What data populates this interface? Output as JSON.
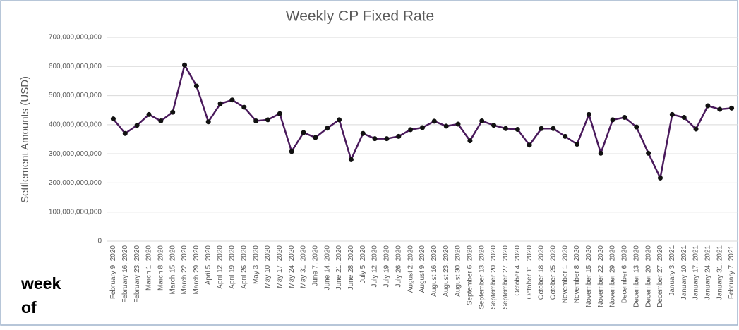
{
  "chart_data": {
    "type": "line",
    "title": "Weekly CP Fixed Rate",
    "y_label": "Settlement Amounts (USD)",
    "x_label": "week of",
    "categories": [
      "February 9, 2020",
      "February 16, 2020",
      "February 23, 2020",
      "March 1, 2020",
      "March 8, 2020",
      "March 15, 2020",
      "March 22, 2020",
      "March 29, 2020",
      "April 5, 2020",
      "April 12, 2020",
      "April 19, 2020",
      "April 26, 2020",
      "May 3, 2020",
      "May 10, 2020",
      "May 17, 2020",
      "May 24, 2020",
      "May 31, 2020",
      "June 7, 2020",
      "June 14, 2020",
      "June 21, 2020",
      "June 28, 2020",
      "July 5, 2020",
      "July 12, 2020",
      "July 19, 2020",
      "July 26, 2020",
      "August 2, 2020",
      "August 9, 2020",
      "August 16, 2020",
      "August 23, 2020",
      "August 30, 2020",
      "September 6, 2020",
      "September 13, 2020",
      "September 20, 2020",
      "September 27, 2020",
      "October 4, 2020",
      "October 11, 2020",
      "October 18, 2020",
      "October 25, 2020",
      "November 1, 2020",
      "November 8, 2020",
      "November 15, 2020",
      "November 22, 2020",
      "November 29, 2020",
      "December 6, 2020",
      "December 13, 2020",
      "December 20, 2020",
      "December 27, 2020",
      "January 3, 2021",
      "January 10, 2021",
      "January 17, 2021",
      "January 24, 2021",
      "January 31, 2021",
      "February 7, 2021"
    ],
    "series": [
      {
        "name": "Settlement Amounts",
        "color": "#4a1a5c",
        "values": [
          420000000000,
          370000000000,
          398000000000,
          435000000000,
          413000000000,
          443000000000,
          605000000000,
          533000000000,
          410000000000,
          472000000000,
          485000000000,
          460000000000,
          413000000000,
          417000000000,
          438000000000,
          308000000000,
          373000000000,
          356000000000,
          388000000000,
          417000000000,
          280000000000,
          370000000000,
          352000000000,
          352000000000,
          360000000000,
          383000000000,
          390000000000,
          412000000000,
          395000000000,
          402000000000,
          345000000000,
          413000000000,
          398000000000,
          387000000000,
          384000000000,
          330000000000,
          387000000000,
          387000000000,
          360000000000,
          333000000000,
          435000000000,
          302000000000,
          417000000000,
          425000000000,
          392000000000,
          302000000000,
          217000000000,
          435000000000,
          425000000000,
          385000000000,
          465000000000,
          453000000000,
          457000000000
        ]
      }
    ],
    "ylim": [
      0,
      700000000000
    ],
    "yticks": [
      0,
      {
        "value": 100000000000,
        "label": "100,000,000,000"
      },
      {
        "value": 200000000000,
        "label": "200,000,000,000"
      },
      {
        "value": 300000000000,
        "label": "300,000,000,000"
      },
      {
        "value": 400000000000,
        "label": "400,000,000,000"
      },
      {
        "value": 500000000000,
        "label": "500,000,000,000"
      },
      {
        "value": 600000000000,
        "label": "600,000,000,000"
      },
      {
        "value": 700000000000,
        "label": "700,000,000,000"
      }
    ],
    "grid": true
  }
}
